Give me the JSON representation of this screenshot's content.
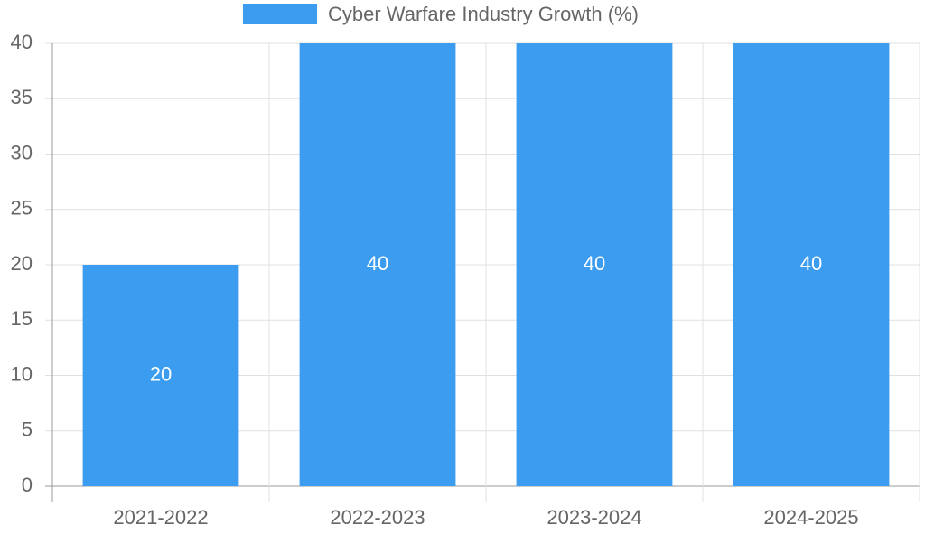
{
  "chart_data": {
    "type": "bar",
    "categories": [
      "2021-2022",
      "2022-2023",
      "2023-2024",
      "2024-2025"
    ],
    "series": [
      {
        "name": "Cyber Warfare Industry Growth (%)",
        "color": "#3b9cf0",
        "values": [
          20,
          40,
          40,
          40
        ]
      }
    ],
    "ylim": [
      0,
      40
    ],
    "yticks": [
      0,
      5,
      10,
      15,
      20,
      25,
      30,
      35,
      40
    ],
    "grid": true,
    "legend": "top"
  }
}
